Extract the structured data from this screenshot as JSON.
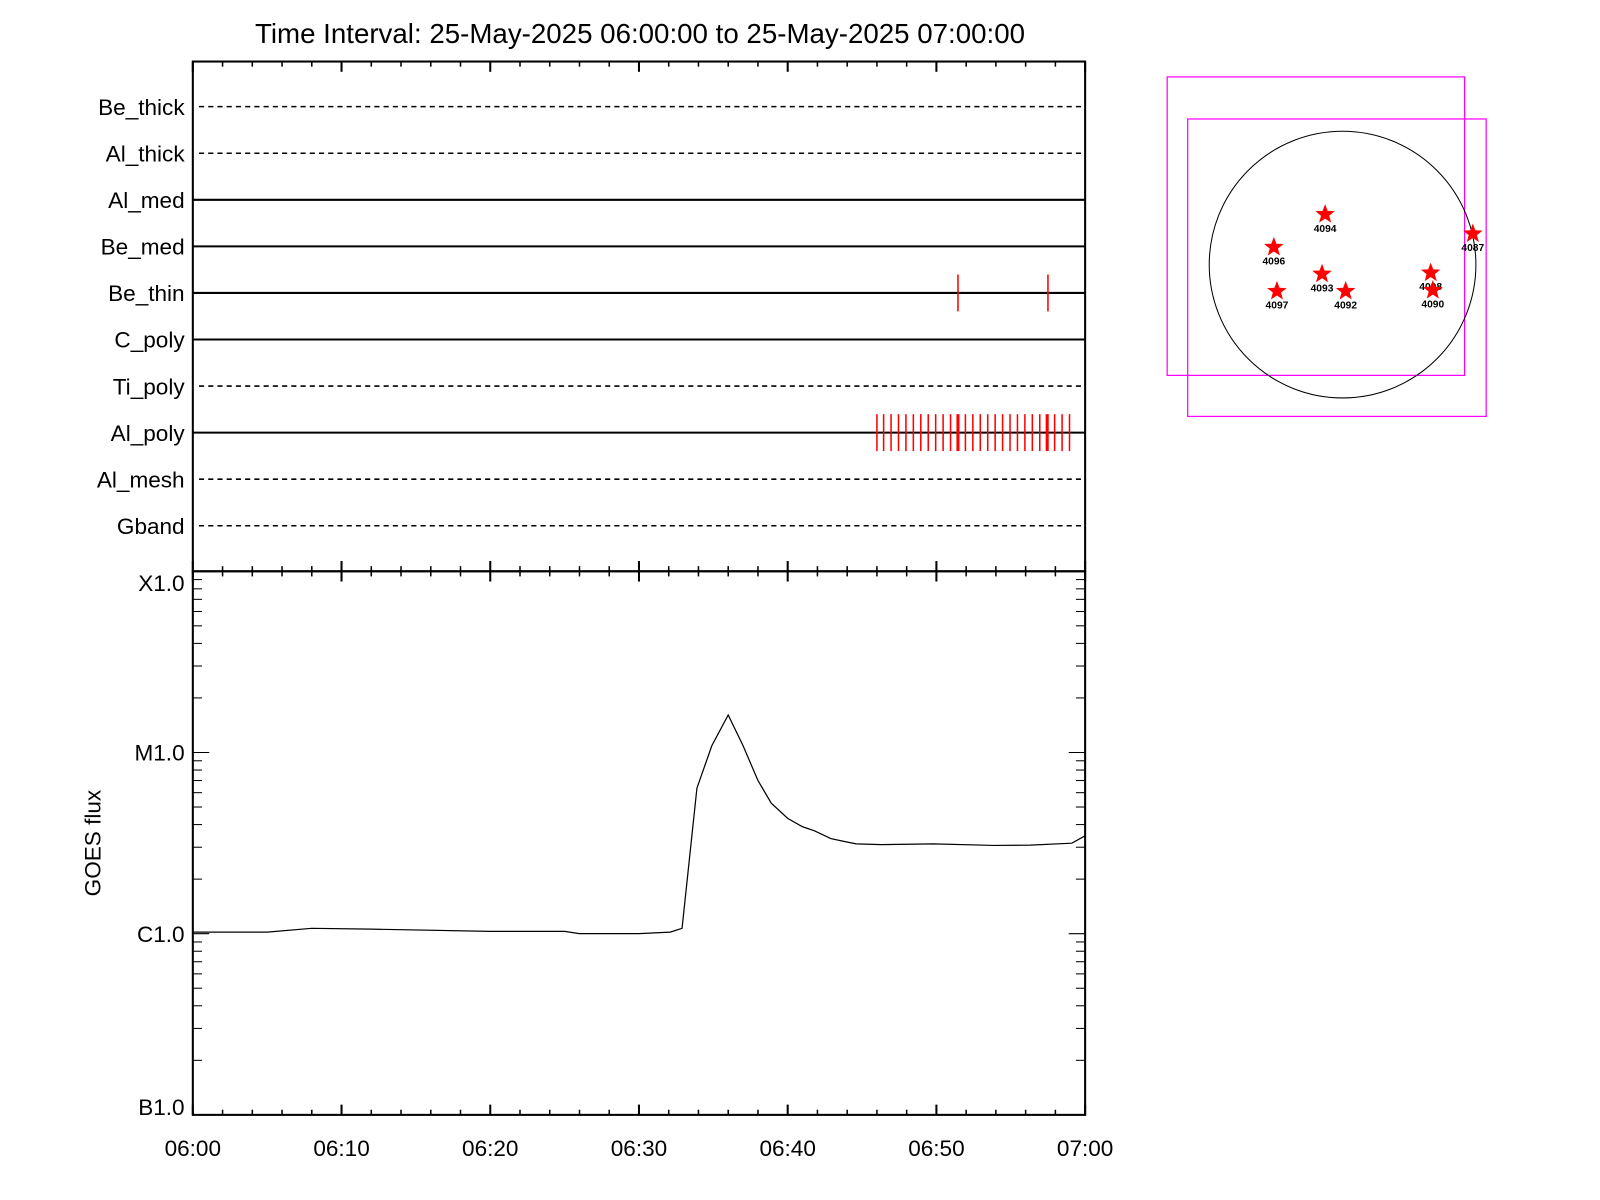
{
  "chart_data": [
    {
      "type": "table",
      "title": "Time Interval: 25-May-2025 06:00:00 to 25-May-2025 07:00:00",
      "xlim_minutes": [
        0,
        60
      ],
      "filters": [
        {
          "name": "Be_thick",
          "style": "dashed",
          "events": []
        },
        {
          "name": "Al_thick",
          "style": "dashed",
          "events": []
        },
        {
          "name": "Al_med",
          "style": "solid",
          "events": []
        },
        {
          "name": "Be_med",
          "style": "solid",
          "events": []
        },
        {
          "name": "Be_thin",
          "style": "solid",
          "events": [
            51.45,
            57.5
          ]
        },
        {
          "name": "C_poly",
          "style": "solid",
          "events": []
        },
        {
          "name": "Ti_poly",
          "style": "dashed",
          "events": []
        },
        {
          "name": "Al_poly",
          "style": "solid",
          "events": [
            46.0,
            46.45,
            46.95,
            47.45,
            47.95,
            48.45,
            48.95,
            49.45,
            49.95,
            50.45,
            50.95,
            51.45,
            51.95,
            52.45,
            52.95,
            53.45,
            53.95,
            54.45,
            54.95,
            55.45,
            55.95,
            56.45,
            56.95,
            57.45,
            57.95,
            58.45,
            58.95
          ]
        },
        {
          "name": "Al_mesh",
          "style": "dashed",
          "events": []
        },
        {
          "name": "Gband",
          "style": "dashed",
          "events": []
        }
      ],
      "event_color": "#ff0000"
    },
    {
      "type": "line",
      "ylabel": "GOES flux",
      "yscale": "log",
      "ylim": [
        1e-07,
        0.0001
      ],
      "xlim_minutes": [
        0,
        60
      ],
      "yticks": [
        {
          "value": 1e-07,
          "label": "B1.0"
        },
        {
          "value": 1e-06,
          "label": "C1.0"
        },
        {
          "value": 1e-05,
          "label": "M1.0"
        },
        {
          "value": 0.0001,
          "label": "X1.0"
        }
      ],
      "xticks": [
        {
          "value": 0,
          "label": "06:00"
        },
        {
          "value": 10,
          "label": "06:10"
        },
        {
          "value": 20,
          "label": "06:20"
        },
        {
          "value": 30,
          "label": "06:30"
        },
        {
          "value": 40,
          "label": "06:40"
        },
        {
          "value": 50,
          "label": "06:50"
        },
        {
          "value": 60,
          "label": "07:00"
        }
      ],
      "x": [
        0,
        5,
        8,
        12,
        20,
        25,
        26,
        30,
        32.1,
        32.9,
        33.9,
        34.9,
        36.0,
        37.0,
        38.0,
        38.9,
        40.0,
        41.0,
        41.8,
        42.9,
        43.7,
        44.6,
        46.3,
        49.8,
        53.9,
        56.3,
        59.1,
        60
      ],
      "y": [
        1.02e-06,
        1.02e-06,
        1.07e-06,
        1.06e-06,
        1.03e-06,
        1.03e-06,
        1e-06,
        1e-06,
        1.02e-06,
        1.07e-06,
        6.35e-06,
        1.09e-05,
        1.61e-05,
        1.09e-05,
        7e-06,
        5.25e-06,
        4.33e-06,
        3.89e-06,
        3.7e-06,
        3.35e-06,
        3.24e-06,
        3.13e-06,
        3.1e-06,
        3.13e-06,
        3.07e-06,
        3.08e-06,
        3.16e-06,
        3.47e-06
      ],
      "color": "#000000"
    },
    {
      "type": "scatter",
      "description_units": "arcsec",
      "regions": [
        {
          "label": "4094",
          "x": -124,
          "y": 357
        },
        {
          "label": "4096",
          "x": -488,
          "y": 124
        },
        {
          "label": "4093",
          "x": -146,
          "y": -66
        },
        {
          "label": "4092",
          "x": 22,
          "y": -189
        },
        {
          "label": "4097",
          "x": -466,
          "y": -189
        },
        {
          "label": "4098",
          "x": 626,
          "y": -58
        },
        {
          "label": "4090",
          "x": 641,
          "y": -182
        },
        {
          "label": "4087",
          "x": 925,
          "y": 219
        }
      ],
      "marker_color": "#ff0000",
      "fov_color": "#ff00ff"
    }
  ]
}
